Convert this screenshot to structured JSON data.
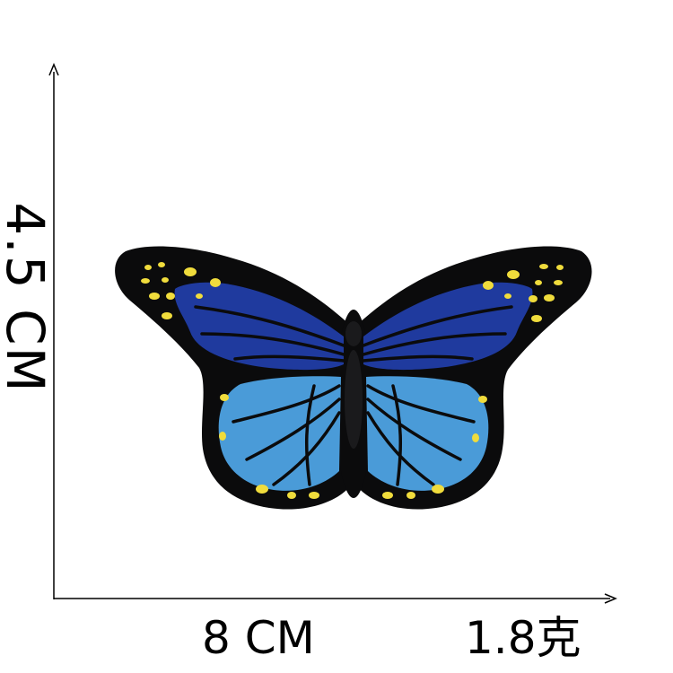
{
  "labels": {
    "height": "4.5 CM",
    "width": "8 CM",
    "weight": "1.8克"
  },
  "colors": {
    "outline": "#0b0b0c",
    "dark_blue": "#1f3a9e",
    "light_blue": "#4a9bd8",
    "spots": "#f0dc3c",
    "axis": "#000000"
  }
}
